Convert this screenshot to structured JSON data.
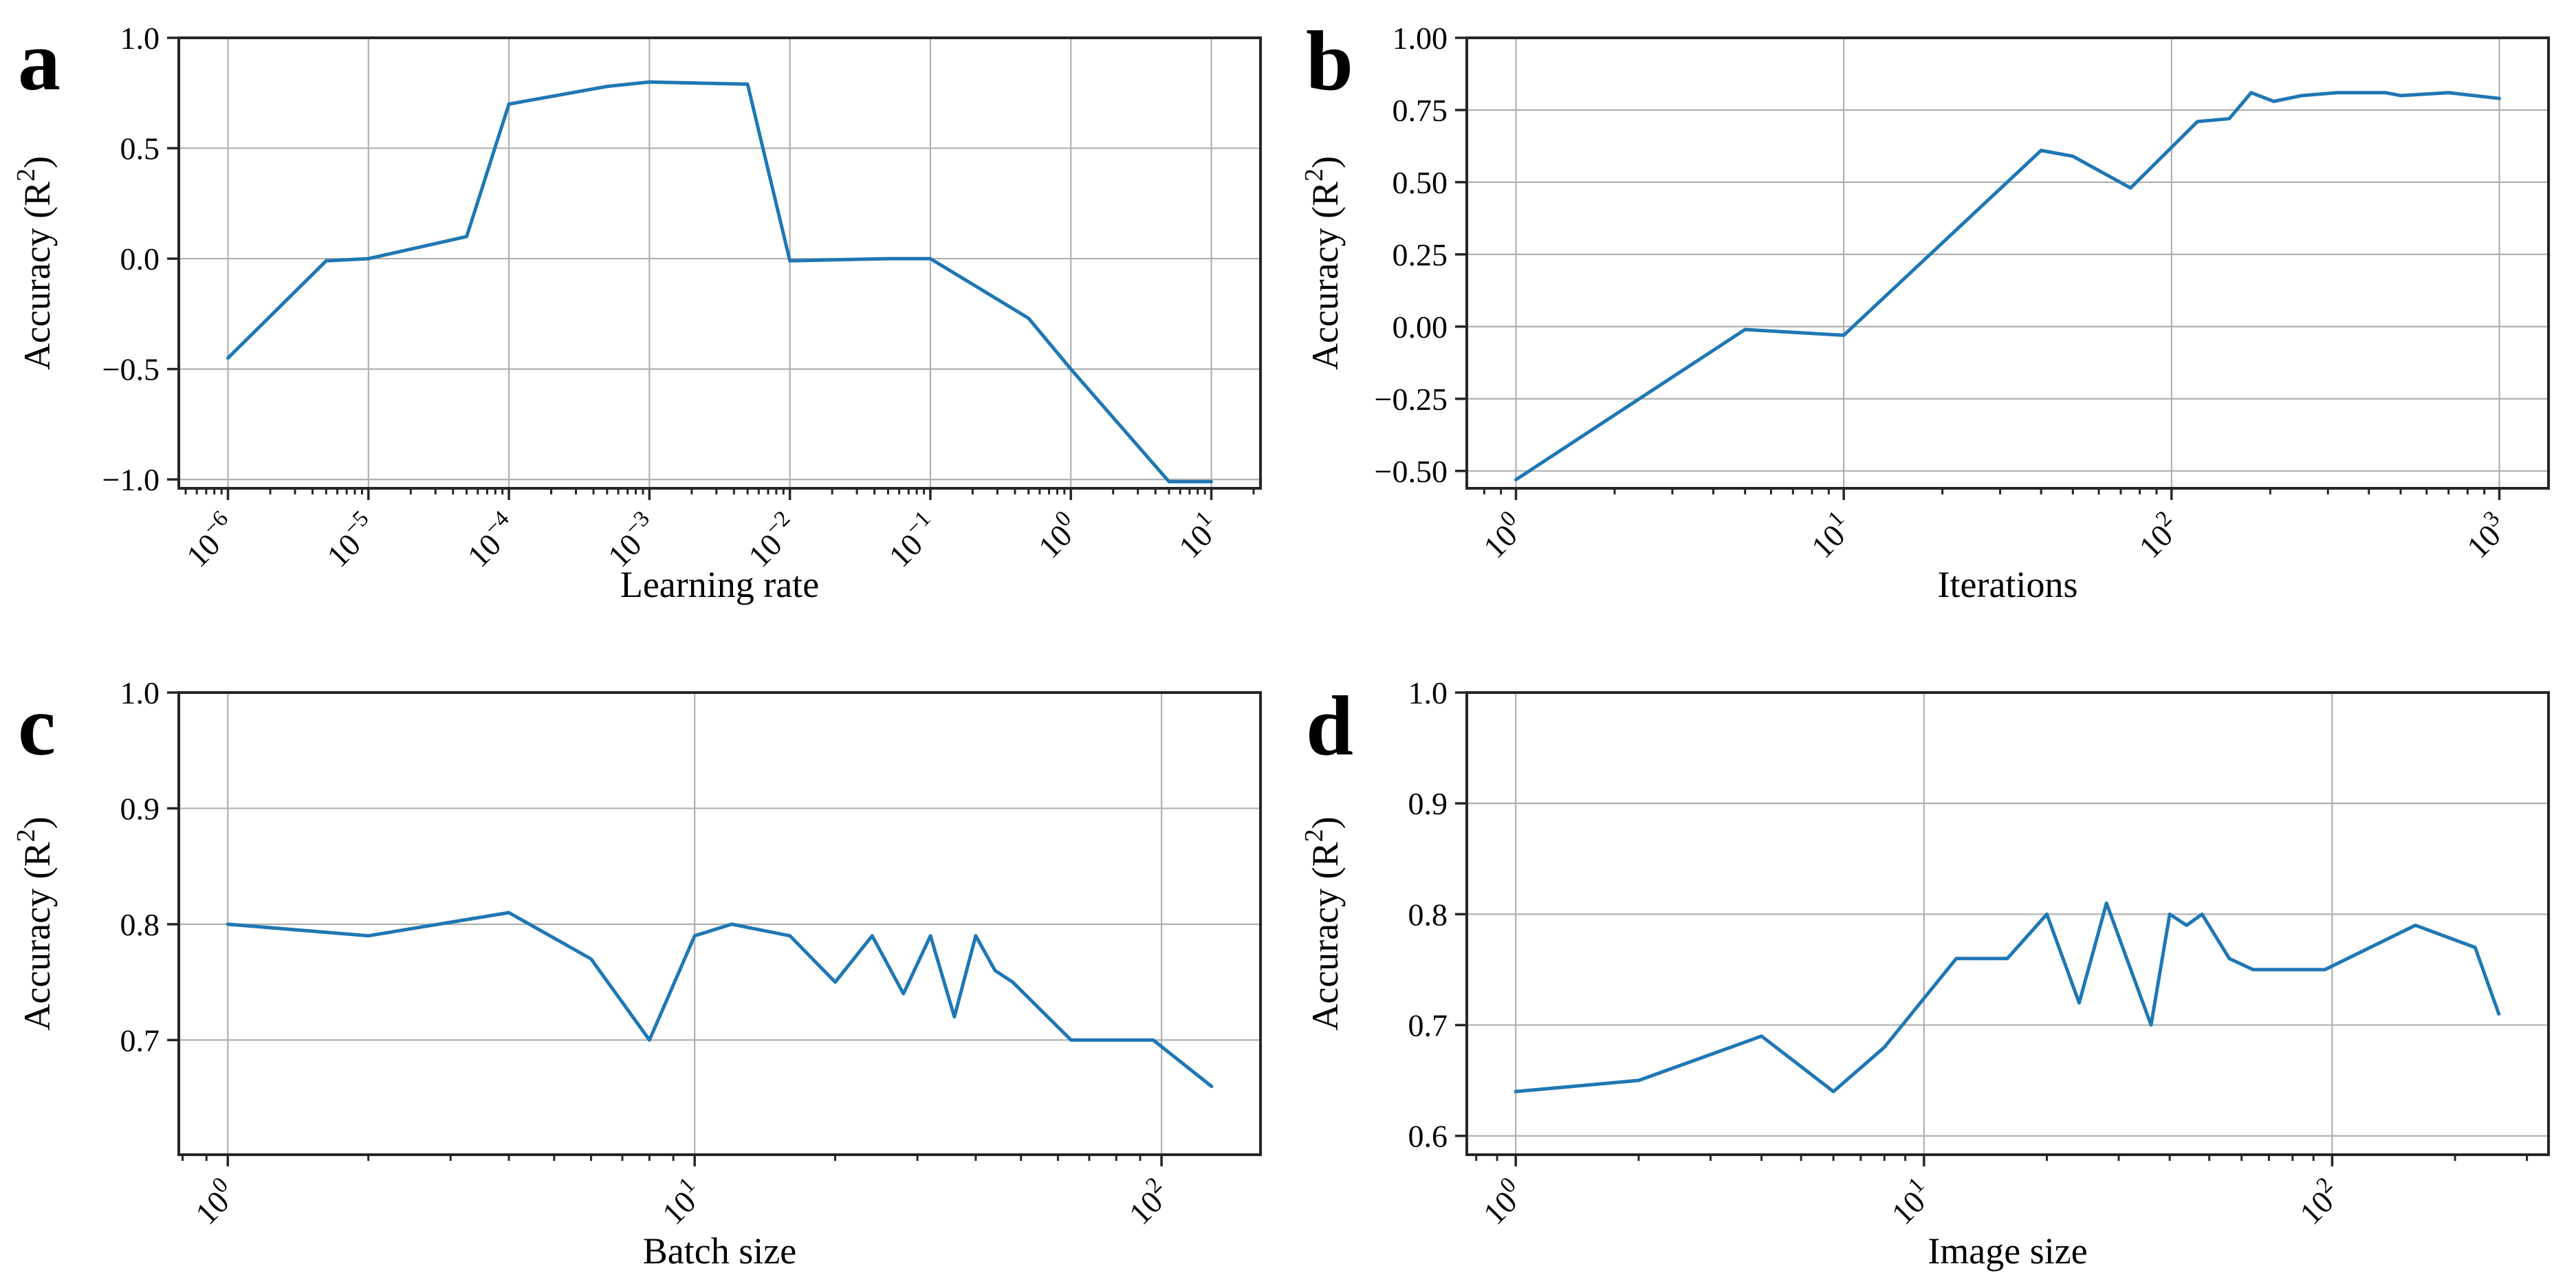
{
  "figure": {
    "style": {
      "line_color": "#1f77b4",
      "grid_color": "#b0b0b0",
      "spine_color": "#262626",
      "tick_color": "#262626",
      "text_color": "#000000",
      "background": "#ffffff"
    }
  },
  "chart_data": [
    {
      "type": "line",
      "panel_letter": "a",
      "title": "",
      "xlabel": "Learning rate",
      "ylabel": "Accuracy (R²)",
      "x_scale": "log",
      "grid": true,
      "legend": false,
      "xlim_log10": [
        -6.35,
        1.35
      ],
      "ylim": [
        -1.04,
        1.0
      ],
      "xtick_exponents": [
        -6,
        -5,
        -4,
        -3,
        -2,
        -1,
        0,
        1
      ],
      "ytick_values": [
        -1.0,
        -0.5,
        0.0,
        0.5,
        1.0
      ],
      "ytick_labels": [
        "−1.0",
        "−0.5",
        "0.0",
        "0.5",
        "1.0"
      ],
      "x": [
        1e-06,
        5e-06,
        1e-05,
        5e-05,
        0.0001,
        0.0005,
        0.001,
        0.005,
        0.01,
        0.05,
        0.1,
        0.5,
        1.0,
        5.0,
        10.0
      ],
      "y": [
        -0.45,
        -0.01,
        0.0,
        0.1,
        0.7,
        0.78,
        0.8,
        0.79,
        -0.01,
        0.0,
        0.0,
        -0.27,
        -0.5,
        -1.01,
        -1.01
      ]
    },
    {
      "type": "line",
      "panel_letter": "b",
      "title": "",
      "xlabel": "Iterations",
      "ylabel": "Accuracy (R²)",
      "x_scale": "log",
      "grid": true,
      "legend": false,
      "xlim_log10": [
        -0.15,
        3.15
      ],
      "ylim": [
        -0.56,
        1.0
      ],
      "xtick_exponents": [
        0,
        1,
        2,
        3
      ],
      "ytick_values": [
        -0.5,
        -0.25,
        0.0,
        0.25,
        0.5,
        0.75,
        1.0
      ],
      "ytick_labels": [
        "−0.50",
        "−0.25",
        "0.00",
        "0.25",
        "0.50",
        "0.75",
        "1.00"
      ],
      "x": [
        1,
        5,
        10,
        40,
        50,
        75,
        120,
        150,
        175,
        205,
        250,
        320,
        450,
        500,
        700,
        1000
      ],
      "y": [
        -0.53,
        -0.01,
        -0.03,
        0.61,
        0.59,
        0.48,
        0.71,
        0.72,
        0.81,
        0.78,
        0.8,
        0.81,
        0.81,
        0.8,
        0.81,
        0.79
      ]
    },
    {
      "type": "line",
      "panel_letter": "c",
      "title": "",
      "xlabel": "Batch size",
      "ylabel": "Accuracy (R²)",
      "x_scale": "log",
      "grid": true,
      "legend": false,
      "xlim_log10": [
        -0.105,
        2.212
      ],
      "ylim": [
        0.601,
        1.0
      ],
      "xtick_exponents": [
        0,
        1,
        2
      ],
      "ytick_values": [
        0.7,
        0.8,
        0.9,
        1.0
      ],
      "ytick_labels": [
        "0.7",
        "0.8",
        "0.9",
        "1.0"
      ],
      "x": [
        1,
        2,
        4,
        6,
        8,
        10,
        12,
        16,
        20,
        24,
        28,
        32,
        36,
        40,
        44,
        48,
        64,
        96,
        128
      ],
      "y": [
        0.8,
        0.79,
        0.81,
        0.77,
        0.7,
        0.79,
        0.8,
        0.79,
        0.75,
        0.79,
        0.74,
        0.79,
        0.72,
        0.79,
        0.76,
        0.75,
        0.7,
        0.7,
        0.66
      ]
    },
    {
      "type": "line",
      "panel_letter": "d",
      "title": "",
      "xlabel": "Image size",
      "ylabel": "Accuracy (R²)",
      "x_scale": "log",
      "grid": true,
      "legend": false,
      "xlim_log10": [
        -0.12,
        2.53
      ],
      "ylim": [
        0.583,
        1.0
      ],
      "xtick_exponents": [
        0,
        1,
        2
      ],
      "ytick_values": [
        0.6,
        0.7,
        0.8,
        0.9,
        1.0
      ],
      "ytick_labels": [
        "0.6",
        "0.7",
        "0.8",
        "0.9",
        "1.0"
      ],
      "x": [
        1,
        2,
        4,
        6,
        8,
        12,
        16,
        20,
        24,
        28,
        36,
        40,
        44,
        48,
        56,
        64,
        96,
        160,
        224,
        256
      ],
      "y": [
        0.64,
        0.65,
        0.69,
        0.64,
        0.68,
        0.76,
        0.76,
        0.8,
        0.72,
        0.81,
        0.7,
        0.8,
        0.79,
        0.8,
        0.76,
        0.75,
        0.75,
        0.79,
        0.77,
        0.71
      ]
    }
  ]
}
